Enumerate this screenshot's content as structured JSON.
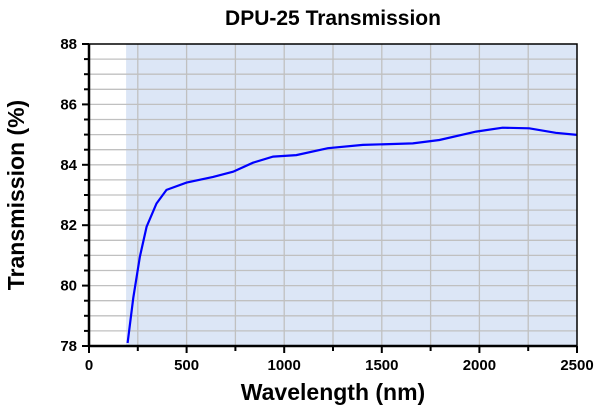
{
  "chart_data": {
    "type": "line",
    "title": "DPU-25 Transmission",
    "xlabel": "Wavelength (nm)",
    "ylabel": "Transmission (%)",
    "xlim": [
      0,
      2500
    ],
    "ylim": [
      78,
      88
    ],
    "xticks": [
      0,
      500,
      1000,
      1500,
      2000,
      2500
    ],
    "yticks": [
      78,
      80,
      82,
      84,
      86,
      88
    ],
    "grid": true,
    "shaded_region_x": [
      190,
      2500
    ],
    "colors": {
      "line": "#0000ff",
      "shade": "#dce6f6",
      "grid": "#c0c0c0"
    },
    "series": [
      {
        "x": [
          198,
          227,
          261,
          295,
          346,
          397,
          500,
          636,
          738,
          840,
          943,
          1062,
          1224,
          1403,
          1659,
          1795,
          1983,
          2119,
          2255,
          2391,
          2500
        ],
        "y": [
          78.1,
          79.6,
          80.96,
          81.95,
          82.72,
          83.17,
          83.41,
          83.6,
          83.77,
          84.07,
          84.27,
          84.32,
          84.55,
          84.66,
          84.71,
          84.82,
          85.1,
          85.23,
          85.21,
          85.06,
          84.99
        ]
      }
    ]
  }
}
